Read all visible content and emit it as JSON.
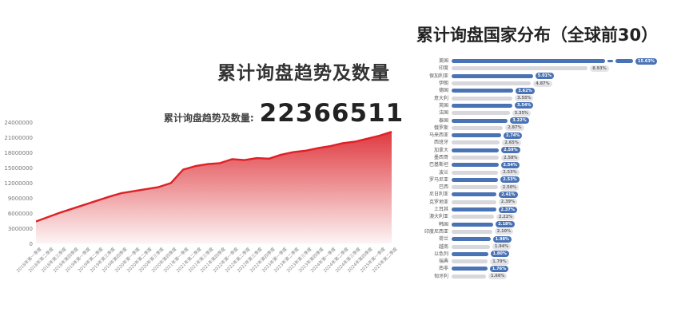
{
  "trend": {
    "title": "累计询盘趋势及数量",
    "stat_label": "累计询盘趋势及数量:",
    "stat_value": "22366511"
  },
  "country": {
    "title": "累计询盘国家分布（全球前30）"
  },
  "colors": {
    "line_red": "#df2026",
    "area_top": "rgba(219,36,42,0.90)",
    "area_bottom": "rgba(219,36,42,0.05)",
    "bar_blue": "#4a73b5",
    "bar_gray": "#d8d8dc",
    "badge_gray_bg": "#e4e4e8",
    "title_dark": "#333333"
  },
  "chart_data": [
    {
      "type": "area",
      "title": "累计询盘趋势及数量",
      "xlabel": "",
      "ylabel": "",
      "ylim": [
        0,
        24000000
      ],
      "yticks": [
        0,
        3000000,
        6000000,
        9000000,
        12000000,
        15000000,
        18000000,
        21000000,
        24000000
      ],
      "grid": false,
      "x": [
        "2018年第一季度",
        "2018年第二季度",
        "2018年第三季度",
        "2018年第四季度",
        "2019年第一季度",
        "2019年第二季度",
        "2019年第三季度",
        "2019年第四季度",
        "2020年第一季度",
        "2020年第二季度",
        "2020年第三季度",
        "2020年第四季度",
        "2021年第一季度",
        "2021年第二季度",
        "2021年第三季度",
        "2021年第四季度",
        "2022年第一季度",
        "2022年第二季度",
        "2022年第三季度",
        "2022年第四季度",
        "2023年第一季度",
        "2023年第二季度",
        "2023年第三季度",
        "2023年第四季度",
        "2024年第一季度",
        "2024年第二季度",
        "2024年第三季度",
        "2024年第四季度",
        "2025年第一季度",
        "2025年第二季度"
      ],
      "values": [
        4400000,
        5300000,
        6200000,
        7000000,
        7800000,
        8600000,
        9400000,
        10100000,
        10500000,
        10900000,
        11300000,
        12100000,
        14800000,
        15500000,
        15900000,
        16100000,
        16900000,
        16700000,
        17100000,
        17000000,
        17800000,
        18300000,
        18600000,
        19100000,
        19500000,
        20100000,
        20400000,
        21000000,
        21600000,
        22366511
      ]
    },
    {
      "type": "bar",
      "orientation": "horizontal",
      "title": "累计询盘国家分布（全球前30）",
      "legend_position": "none",
      "first_bar_truncated": true,
      "categories": [
        "美国",
        "印度",
        "保加利亚",
        "伊朗",
        "德国",
        "意大利",
        "英国",
        "法国",
        "泰国",
        "俄罗斯",
        "马来西亚",
        "西班牙",
        "加拿大",
        "墨西哥",
        "巴基斯坦",
        "波兰",
        "罗马尼亚",
        "巴西",
        "尼日利亚",
        "克罗地亚",
        "土耳其",
        "澳大利亚",
        "韩国",
        "印度尼西亚",
        "荷兰",
        "越南",
        "以色列",
        "瑞典",
        "南非",
        "匈牙利"
      ],
      "values_percent": [
        15.63,
        8.93,
        5.01,
        4.87,
        3.62,
        3.55,
        3.54,
        3.35,
        3.22,
        2.87,
        2.74,
        2.65,
        2.59,
        2.58,
        2.54,
        2.53,
        2.53,
        2.5,
        2.41,
        2.39,
        2.37,
        2.22,
        2.18,
        2.1,
        1.98,
        1.94,
        1.8,
        1.79,
        1.76,
        1.66
      ]
    }
  ]
}
